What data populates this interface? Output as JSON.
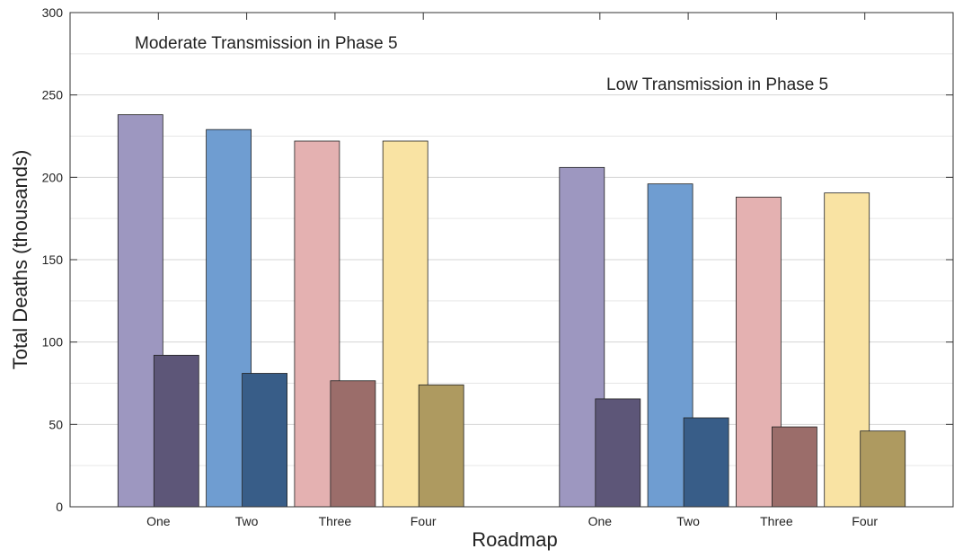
{
  "chart_data": {
    "type": "bar",
    "ylabel": "Total Deaths (thousands)",
    "xlabel": "Roadmap",
    "ylim": [
      0,
      300
    ],
    "yticks": [
      0,
      50,
      100,
      150,
      200,
      250,
      300
    ],
    "minor_yticks": [
      25,
      75,
      125,
      175,
      225,
      275
    ],
    "grid": true,
    "groups": [
      {
        "title": "Moderate Transmission in Phase 5",
        "categories": [
          "One",
          "Two",
          "Three",
          "Four"
        ],
        "series": [
          {
            "colors": [
              "#9d97c0",
              "#6f9dd1",
              "#e4b1b1",
              "#f9e3a3"
            ],
            "values": [
              238,
              229,
              222,
              222
            ]
          },
          {
            "colors": [
              "#5d5678",
              "#385d88",
              "#9b6d6a",
              "#ae9a60"
            ],
            "values": [
              92,
              81,
              76.5,
              74
            ]
          }
        ]
      },
      {
        "title": "Low Transmission in Phase 5",
        "categories": [
          "One",
          "Two",
          "Three",
          "Four"
        ],
        "series": [
          {
            "colors": [
              "#9d97c0",
              "#6f9dd1",
              "#e4b1b1",
              "#f9e3a3"
            ],
            "values": [
              206,
              196,
              188,
              190.5
            ]
          },
          {
            "colors": [
              "#5d5678",
              "#385d88",
              "#9b6d6a",
              "#ae9a60"
            ],
            "values": [
              65.5,
              54,
              48.5,
              46
            ]
          }
        ]
      }
    ]
  }
}
